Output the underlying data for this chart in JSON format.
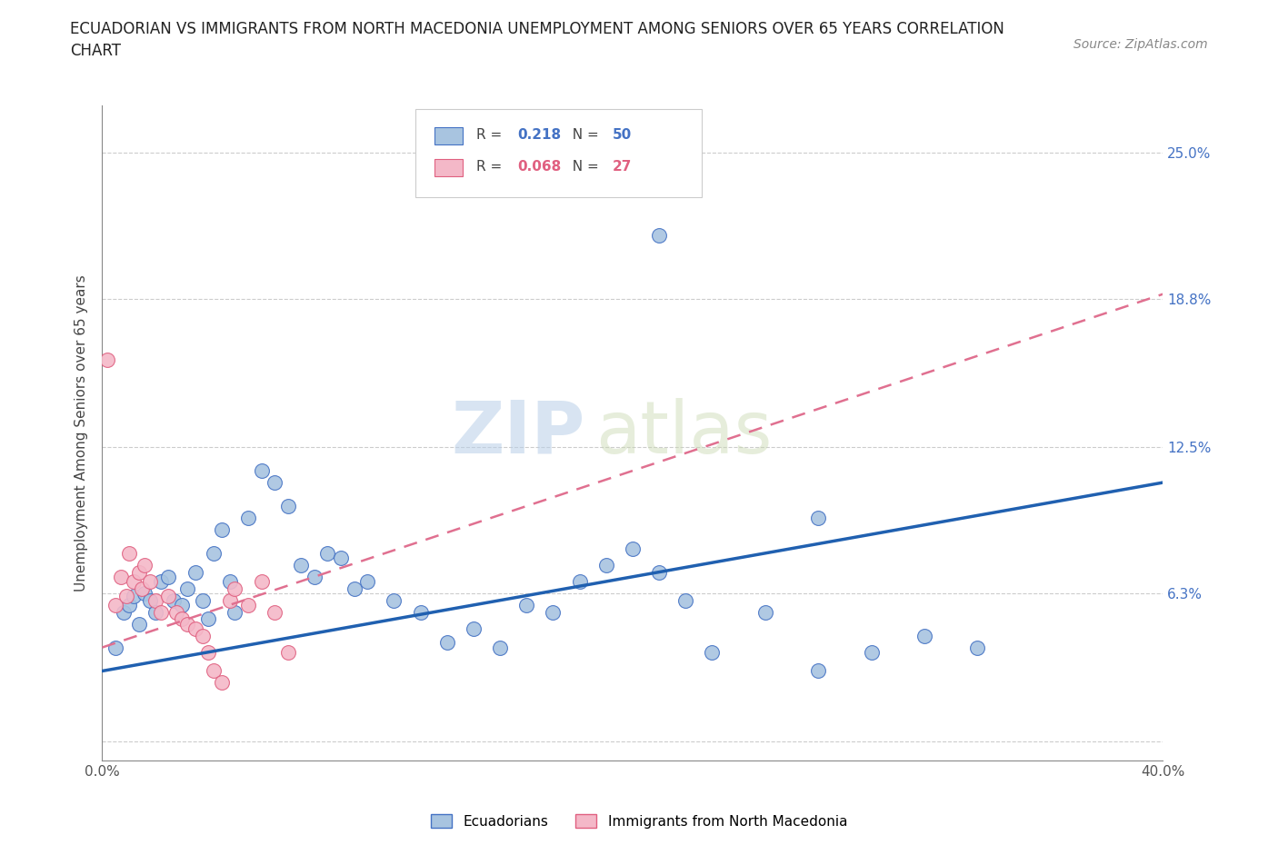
{
  "title": "ECUADORIAN VS IMMIGRANTS FROM NORTH MACEDONIA UNEMPLOYMENT AMONG SENIORS OVER 65 YEARS CORRELATION\nCHART",
  "source": "Source: ZipAtlas.com",
  "ylabel": "Unemployment Among Seniors over 65 years",
  "xlim": [
    0.0,
    0.4
  ],
  "ylim": [
    -0.008,
    0.27
  ],
  "xticks": [
    0.0,
    0.1,
    0.2,
    0.3,
    0.4
  ],
  "xtick_labels": [
    "0.0%",
    "",
    "",
    "",
    "40.0%"
  ],
  "ytick_positions": [
    0.0,
    0.063,
    0.125,
    0.188,
    0.25
  ],
  "ytick_labels": [
    "",
    "6.3%",
    "12.5%",
    "18.8%",
    "25.0%"
  ],
  "R_ecuador": 0.218,
  "N_ecuador": 50,
  "R_macedonia": 0.068,
  "N_macedonia": 27,
  "ecuador_color": "#a8c4e0",
  "ecuador_edge_color": "#4472c4",
  "macedonia_color": "#f4b8c8",
  "macedonia_edge_color": "#e06080",
  "ecuador_line_color": "#2060b0",
  "macedonia_line_color": "#e07090",
  "watermark_color": "#d0e4f4",
  "ecuador_x": [
    0.005,
    0.008,
    0.01,
    0.012,
    0.014,
    0.016,
    0.018,
    0.02,
    0.022,
    0.025,
    0.027,
    0.03,
    0.032,
    0.035,
    0.038,
    0.04,
    0.042,
    0.045,
    0.048,
    0.05,
    0.055,
    0.06,
    0.065,
    0.07,
    0.075,
    0.08,
    0.085,
    0.09,
    0.095,
    0.1,
    0.11,
    0.12,
    0.13,
    0.14,
    0.15,
    0.16,
    0.17,
    0.18,
    0.19,
    0.2,
    0.21,
    0.22,
    0.23,
    0.25,
    0.27,
    0.29,
    0.31,
    0.33,
    0.27,
    0.21
  ],
  "ecuador_y": [
    0.04,
    0.055,
    0.058,
    0.062,
    0.05,
    0.063,
    0.06,
    0.055,
    0.068,
    0.07,
    0.06,
    0.058,
    0.065,
    0.072,
    0.06,
    0.052,
    0.08,
    0.09,
    0.068,
    0.055,
    0.095,
    0.115,
    0.11,
    0.1,
    0.075,
    0.07,
    0.08,
    0.078,
    0.065,
    0.068,
    0.06,
    0.055,
    0.042,
    0.048,
    0.04,
    0.058,
    0.055,
    0.068,
    0.075,
    0.082,
    0.072,
    0.06,
    0.038,
    0.055,
    0.03,
    0.038,
    0.045,
    0.04,
    0.095,
    0.215
  ],
  "macedonia_x": [
    0.002,
    0.005,
    0.007,
    0.009,
    0.01,
    0.012,
    0.014,
    0.015,
    0.016,
    0.018,
    0.02,
    0.022,
    0.025,
    0.028,
    0.03,
    0.032,
    0.035,
    0.038,
    0.04,
    0.042,
    0.045,
    0.048,
    0.05,
    0.055,
    0.06,
    0.065,
    0.07
  ],
  "macedonia_y": [
    0.162,
    0.058,
    0.07,
    0.062,
    0.08,
    0.068,
    0.072,
    0.065,
    0.075,
    0.068,
    0.06,
    0.055,
    0.062,
    0.055,
    0.052,
    0.05,
    0.048,
    0.045,
    0.038,
    0.03,
    0.025,
    0.06,
    0.065,
    0.058,
    0.068,
    0.055,
    0.038
  ],
  "trendline_ec_x0": 0.0,
  "trendline_ec_y0": 0.03,
  "trendline_ec_x1": 0.4,
  "trendline_ec_y1": 0.11,
  "trendline_mac_x0": 0.0,
  "trendline_mac_y0": 0.04,
  "trendline_mac_x1": 0.4,
  "trendline_mac_y1": 0.19
}
